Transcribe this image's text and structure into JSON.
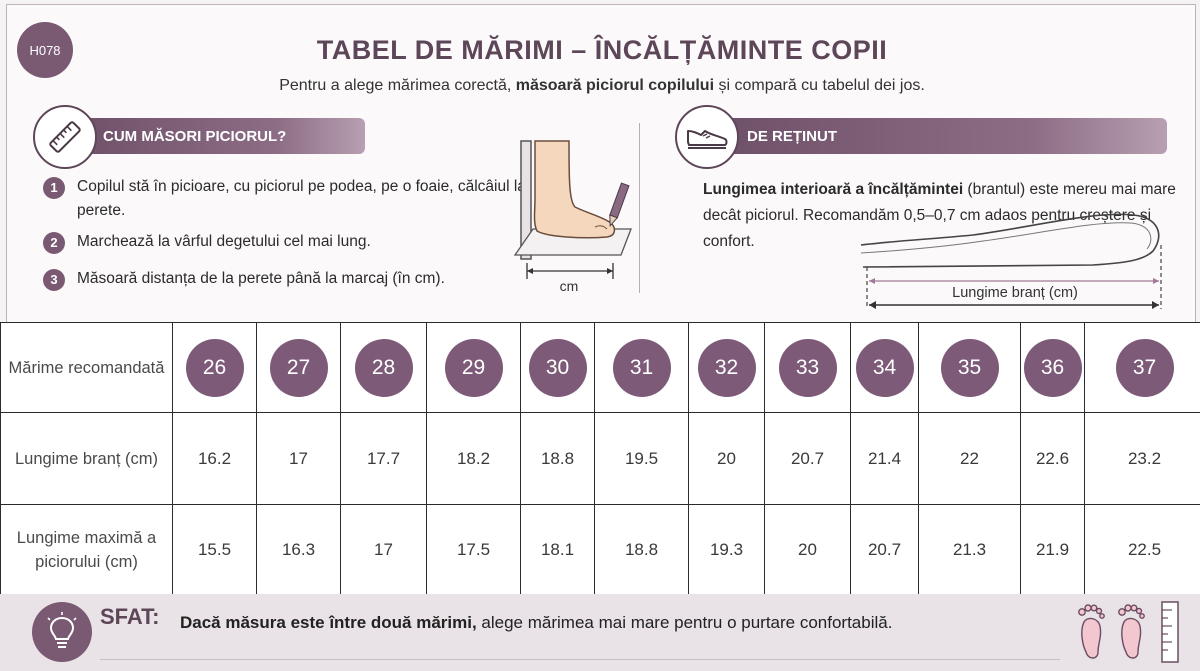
{
  "header": {
    "code": "H078",
    "title": "TABEL DE MĂRIMI – ÎNCĂLȚĂMINTE COPII",
    "subtitle_pre": "Pentru a alege mărimea corectă, ",
    "subtitle_bold": "măsoară piciorul copilului",
    "subtitle_post": " și compară cu tabelul dei jos."
  },
  "measure": {
    "heading": "CUM MĂSORI PICIORUL?",
    "icon": "ruler-icon",
    "steps": [
      {
        "num": "1",
        "text": "Copilul stă în picioare, cu piciorul pe podea, pe o foaie, călcâiul la perete."
      },
      {
        "num": "2",
        "text": "Marchează la vârful degetului cel mai lung."
      },
      {
        "num": "3",
        "text": "Măsoară distanța de la perete până la marcaj (în cm)."
      }
    ],
    "diagram_label": "cm"
  },
  "remember": {
    "heading": "DE REȚINUT",
    "icon": "shoe-icon",
    "note_bold": "Lungimea interioară a încălțămintei",
    "note_rest": " (brantul) este mereu mai mare decât piciorul. Recomandăm 0,5–0,7 cm adaos pentru creștere și confort.",
    "insole_label": "Lungime branț (cm)"
  },
  "table": {
    "row_labels": [
      "Mărime recomandată",
      "Lungime branț (cm)",
      "Lungime maximă a piciorului (cm)"
    ],
    "sizes": [
      "26",
      "27",
      "28",
      "29",
      "30",
      "31",
      "32",
      "33",
      "34",
      "35",
      "36",
      "37"
    ],
    "insole_cm": [
      "16.2",
      "17",
      "17.7",
      "18.2",
      "18.8",
      "19.5",
      "20",
      "20.7",
      "21.4",
      "22",
      "22.6",
      "23.2"
    ],
    "foot_max_cm": [
      "15.5",
      "16.3",
      "17",
      "17.5",
      "18.1",
      "18.8",
      "19.3",
      "20",
      "20.7",
      "21.3",
      "21.9",
      "22.5"
    ]
  },
  "tip": {
    "label": "SFAT:",
    "bold": "Dacă măsura este între două mărimi,",
    "rest": " alege mărimea mai mare pentru o purtare confortabilă.",
    "icon": "lightbulb-icon"
  },
  "colors": {
    "accent": "#7a5a73",
    "title": "#5d4658"
  }
}
